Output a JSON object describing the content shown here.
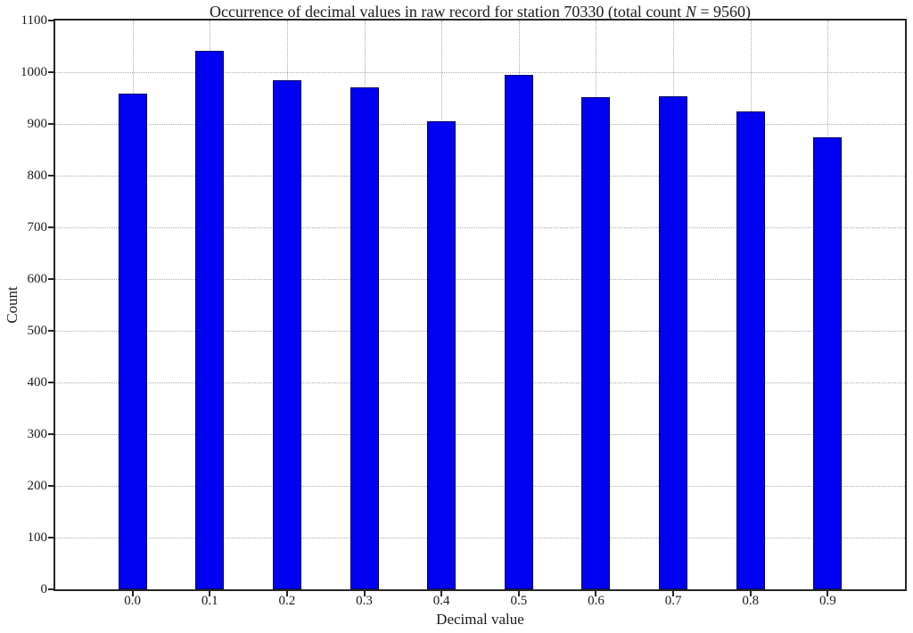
{
  "chart_data": {
    "type": "bar",
    "title": "Occurrence of decimal values in raw record for station 70330 (total count N = 9560)",
    "title_parts": {
      "prefix": "Occurrence of decimal values in raw record for station 70330 (total count ",
      "math": "N",
      "suffix": " = 9560)"
    },
    "categories": [
      "0.0",
      "0.1",
      "0.2",
      "0.3",
      "0.4",
      "0.5",
      "0.6",
      "0.7",
      "0.8",
      "0.9"
    ],
    "values": [
      959,
      1042,
      985,
      970,
      906,
      995,
      951,
      954,
      924,
      874
    ],
    "xlabel": "Decimal value",
    "ylabel": "Count",
    "ylim": [
      0,
      1100
    ],
    "ytick_step": 100,
    "yticks": [
      "0",
      "100",
      "200",
      "300",
      "400",
      "500",
      "600",
      "700",
      "800",
      "900",
      "1000",
      "1100"
    ],
    "grid": "dotted",
    "legend": "none",
    "colors": {
      "bar_fill": "#0101f2",
      "bar_edge": "#000066",
      "grid": "#ababab",
      "spine": "#262626",
      "text": "#1a1a1a",
      "background": "#ffffff"
    }
  }
}
